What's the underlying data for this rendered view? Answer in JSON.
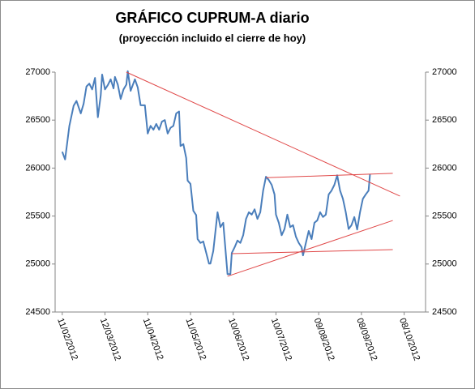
{
  "chart_data": {
    "type": "line",
    "title": "GRÁFICO CUPRUM-A diario",
    "subtitle": "(proyección incluido el cierre de hoy)",
    "x": [
      "11/02/2012",
      "13/02/2012",
      "16/02/2012",
      "19/02/2012",
      "21/02/2012",
      "24/02/2012",
      "26/02/2012",
      "28/02/2012",
      "01/03/2012",
      "03/03/2012",
      "05/03/2012",
      "07/03/2012",
      "09/03/2012",
      "10/03/2012",
      "12/03/2012",
      "14/03/2012",
      "16/03/2012",
      "18/03/2012",
      "19/03/2012",
      "21/03/2012",
      "23/03/2012",
      "25/03/2012",
      "27/03/2012",
      "28/03/2012",
      "30/03/2012",
      "02/04/2012",
      "04/04/2012",
      "06/04/2012",
      "09/04/2012",
      "11/04/2012",
      "13/04/2012",
      "15/04/2012",
      "17/04/2012",
      "19/04/2012",
      "21/04/2012",
      "23/04/2012",
      "25/04/2012",
      "27/04/2012",
      "29/04/2012",
      "01/05/2012",
      "03/05/2012",
      "04/05/2012",
      "06/05/2012",
      "08/05/2012",
      "09/05/2012",
      "11/05/2012",
      "13/05/2012",
      "15/05/2012",
      "16/05/2012",
      "18/05/2012",
      "20/05/2012",
      "22/05/2012",
      "24/05/2012",
      "25/05/2012",
      "27/05/2012",
      "30/05/2012",
      "01/06/2012",
      "03/06/2012",
      "06/06/2012",
      "08/06/2012",
      "09/06/2012",
      "11/06/2012",
      "13/06/2012",
      "15/06/2012",
      "17/06/2012",
      "19/06/2012",
      "21/06/2012",
      "23/06/2012",
      "25/06/2012",
      "27/06/2012",
      "29/06/2012",
      "01/07/2012",
      "03/07/2012",
      "05/07/2012",
      "07/07/2012",
      "09/07/2012",
      "10/07/2012",
      "12/07/2012",
      "14/07/2012",
      "16/07/2012",
      "18/07/2012",
      "20/07/2012",
      "22/07/2012",
      "24/07/2012",
      "26/07/2012",
      "28/07/2012",
      "29/07/2012",
      "31/07/2012",
      "02/08/2012",
      "04/08/2012",
      "06/08/2012",
      "08/08/2012",
      "10/08/2012",
      "12/08/2012",
      "14/08/2012",
      "16/08/2012",
      "18/08/2012",
      "20/08/2012",
      "22/08/2012",
      "24/08/2012",
      "26/08/2012",
      "28/08/2012",
      "30/08/2012",
      "01/09/2012",
      "03/09/2012",
      "05/09/2012",
      "07/09/2012",
      "09/09/2012",
      "11/09/2012",
      "13/09/2012",
      "14/09/2012"
    ],
    "series": [
      {
        "name": "CUPRUM-A",
        "color": "#4a7ebb",
        "values": [
          26170,
          26090,
          26440,
          26650,
          26700,
          26570,
          26670,
          26850,
          26880,
          26820,
          26940,
          26530,
          26755,
          26975,
          26820,
          26865,
          26925,
          26830,
          26950,
          26870,
          26720,
          26820,
          26870,
          27010,
          26805,
          26925,
          26840,
          26655,
          26655,
          26360,
          26440,
          26400,
          26460,
          26400,
          26485,
          26500,
          26360,
          26420,
          26440,
          26570,
          26590,
          26230,
          26250,
          26105,
          25870,
          25835,
          25555,
          25510,
          25260,
          25220,
          25235,
          25120,
          25005,
          25005,
          25135,
          25540,
          25385,
          25430,
          24895,
          24895,
          25115,
          25175,
          25245,
          25220,
          25300,
          25470,
          25540,
          25515,
          25570,
          25470,
          25540,
          25765,
          25910,
          25875,
          25825,
          25725,
          25515,
          25430,
          25300,
          25365,
          25515,
          25385,
          25405,
          25285,
          25220,
          25175,
          25090,
          25220,
          25345,
          25260,
          25430,
          25455,
          25540,
          25490,
          25515,
          25725,
          25765,
          25825,
          25925,
          25765,
          25680,
          25540,
          25365,
          25405,
          25490,
          25360,
          25540,
          25680,
          25725,
          25765,
          25935
        ]
      }
    ],
    "trend_lines": [
      {
        "color": "#e04848",
        "x": [
          "27/03/2012",
          "05/10/2012"
        ],
        "y": [
          27000,
          25708
        ]
      },
      {
        "color": "#e04848",
        "x": [
          "03/07/2012",
          "30/09/2012"
        ],
        "y": [
          25900,
          25945
        ]
      },
      {
        "color": "#e04848",
        "x": [
          "09/06/2012",
          "30/09/2012"
        ],
        "y": [
          25108,
          25150
        ]
      },
      {
        "color": "#e04848",
        "x": [
          "06/06/2012",
          "30/09/2012"
        ],
        "y": [
          24872,
          25454
        ]
      }
    ],
    "xlim": [
      "06/02/2012",
      "23/10/2012"
    ],
    "xticks": [
      "11/02/2012",
      "12/03/2012",
      "11/04/2012",
      "11/05/2012",
      "10/06/2012",
      "10/07/2012",
      "09/08/2012",
      "08/09/2012",
      "08/10/2012"
    ],
    "ylim": [
      24500,
      27000
    ],
    "yticks": [
      24500,
      25000,
      25500,
      26000,
      26500,
      27000
    ],
    "y2lim": [
      24500,
      27000
    ],
    "y2ticks": [
      24500,
      25000,
      25500,
      26000,
      26500,
      27000
    ],
    "grid": false
  }
}
